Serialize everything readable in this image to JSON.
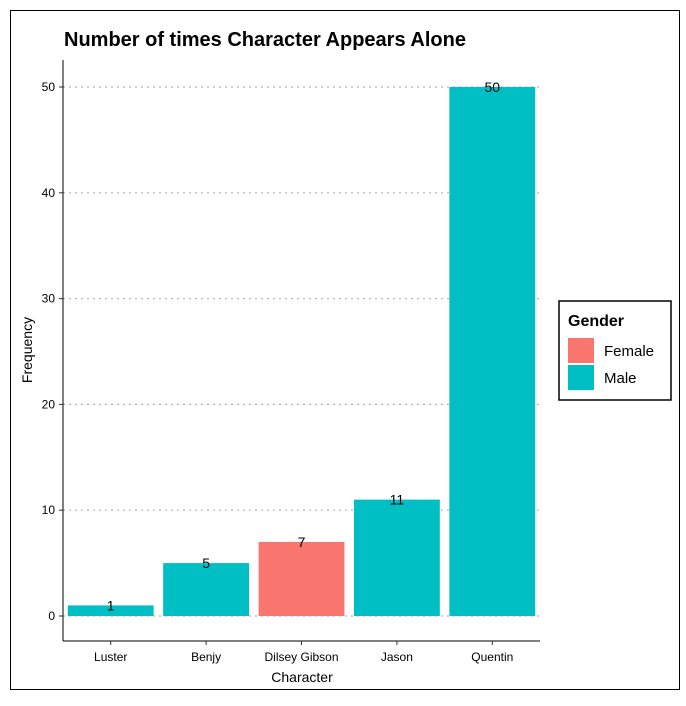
{
  "chart_data": {
    "type": "bar",
    "title": "Number of times Character Appears Alone",
    "xlabel": "Character",
    "ylabel": "Frequency",
    "categories": [
      "Luster",
      "Benjy",
      "Dilsey Gibson",
      "Jason",
      "Quentin"
    ],
    "values": [
      1,
      5,
      7,
      11,
      50
    ],
    "groups": [
      "Male",
      "Male",
      "Female",
      "Male",
      "Male"
    ],
    "ylim": [
      0,
      52.5
    ],
    "yticks": [
      0,
      10,
      20,
      30,
      40,
      50
    ],
    "grid": "horizontal-dotted",
    "legend": {
      "title": "Gender",
      "placement": "right",
      "entries": [
        {
          "label": "Female",
          "color": "#F8766D"
        },
        {
          "label": "Male",
          "color": "#00BFC4"
        }
      ]
    }
  }
}
